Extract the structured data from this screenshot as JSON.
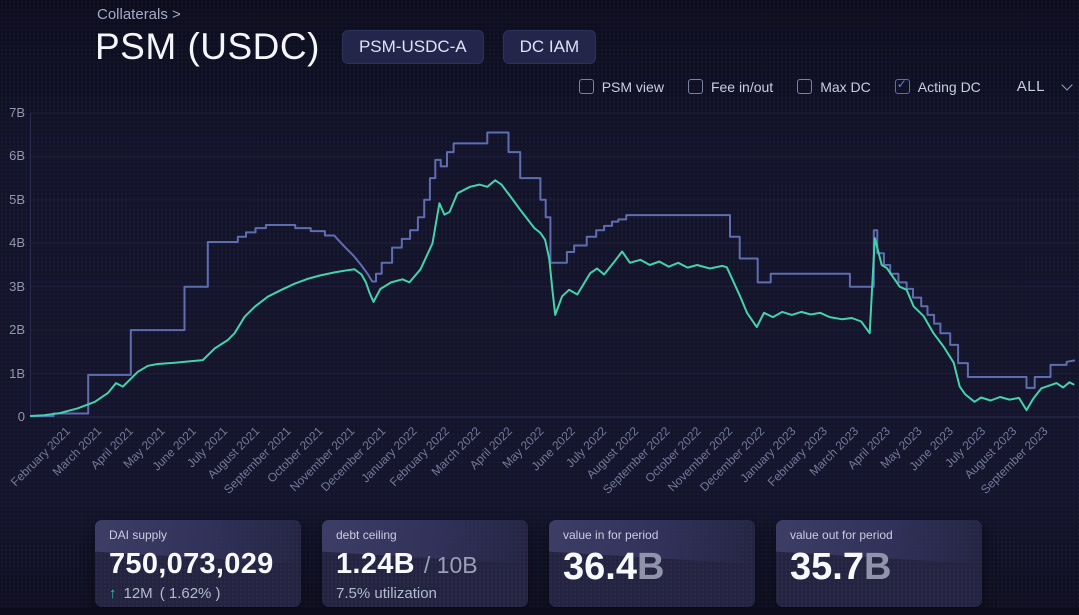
{
  "breadcrumb": "Collaterals >",
  "title": "PSM (USDC)",
  "badges": [
    "PSM-USDC-A",
    "DC IAM"
  ],
  "controls": {
    "checkboxes": [
      {
        "label": "PSM view",
        "checked": false
      },
      {
        "label": "Fee in/out",
        "checked": false
      },
      {
        "label": "Max DC",
        "checked": false
      },
      {
        "label": "Acting DC",
        "checked": true
      }
    ],
    "range": {
      "value": "ALL"
    }
  },
  "colors": {
    "acting_dc_line": "#5e6db0",
    "dai_supply_line": "#43d3ab",
    "checkbox_checked": "#4f6fd6",
    "positive_change": "#2fc9a2",
    "card_bg": "#242441",
    "page_bg": "#13132a"
  },
  "chart_data": {
    "type": "line",
    "title": "",
    "xlabel": "",
    "ylabel": "",
    "x_unit": "months, fractional, 0 = February 2021 tick",
    "y_unit": "billions of DAI",
    "ylim": [
      0,
      7
    ],
    "grid": true,
    "legend_position": "none (series toggled by checkboxes above chart)",
    "y_axis": {
      "tick_labels": [
        "0",
        "1B",
        "2B",
        "3B",
        "4B",
        "5B",
        "6B",
        "7B"
      ]
    },
    "x_axis": {
      "tick_labels": [
        "February 2021",
        "March 2021",
        "April 2021",
        "May 2021",
        "June 2021",
        "July 2021",
        "August 2021",
        "September 2021",
        "October 2021",
        "November 2021",
        "December 2021",
        "January 2022",
        "February 2022",
        "March 2022",
        "April 2022",
        "May 2022",
        "June 2022",
        "July 2022",
        "August 2022",
        "September 2022",
        "October 2022",
        "November 2022",
        "December 2022",
        "January 2023",
        "February 2023",
        "March 2023",
        "April 2023",
        "May 2023",
        "June 2023",
        "July 2023",
        "August 2023",
        "September 2023"
      ]
    },
    "series": [
      {
        "name": "Acting DC",
        "color": "#5e6db0",
        "style": "step",
        "points": [
          [
            -1.1,
            0.02
          ],
          [
            -0.3,
            0.02
          ],
          [
            -0.3,
            0.08
          ],
          [
            0.8,
            0.08
          ],
          [
            0.8,
            0.97
          ],
          [
            2.15,
            0.97
          ],
          [
            2.15,
            2.0
          ],
          [
            3.85,
            2.0
          ],
          [
            3.85,
            3.0
          ],
          [
            4.59,
            3.0
          ],
          [
            4.59,
            4.03
          ],
          [
            5.54,
            4.03
          ],
          [
            5.54,
            4.15
          ],
          [
            5.8,
            4.15
          ],
          [
            5.8,
            4.25
          ],
          [
            6.1,
            4.25
          ],
          [
            6.1,
            4.35
          ],
          [
            6.43,
            4.35
          ],
          [
            6.43,
            4.42
          ],
          [
            7.36,
            4.42
          ],
          [
            7.36,
            4.35
          ],
          [
            7.85,
            4.35
          ],
          [
            7.85,
            4.28
          ],
          [
            8.3,
            4.28
          ],
          [
            8.3,
            4.18
          ],
          [
            8.6,
            4.18
          ],
          [
            8.72,
            4.08
          ],
          [
            8.95,
            3.9
          ],
          [
            9.2,
            3.72
          ],
          [
            9.45,
            3.5
          ],
          [
            9.65,
            3.3
          ],
          [
            9.8,
            3.12
          ],
          [
            9.92,
            3.12
          ],
          [
            9.92,
            3.3
          ],
          [
            10.1,
            3.3
          ],
          [
            10.1,
            3.55
          ],
          [
            10.43,
            3.55
          ],
          [
            10.43,
            3.9
          ],
          [
            10.74,
            3.9
          ],
          [
            10.74,
            4.1
          ],
          [
            11.0,
            4.1
          ],
          [
            11.0,
            4.3
          ],
          [
            11.25,
            4.3
          ],
          [
            11.25,
            4.6
          ],
          [
            11.45,
            4.6
          ],
          [
            11.45,
            5.0
          ],
          [
            11.63,
            5.0
          ],
          [
            11.63,
            5.5
          ],
          [
            11.8,
            5.5
          ],
          [
            11.8,
            5.92
          ],
          [
            11.97,
            5.92
          ],
          [
            11.97,
            5.77
          ],
          [
            12.17,
            5.77
          ],
          [
            12.17,
            6.1
          ],
          [
            12.38,
            6.1
          ],
          [
            12.38,
            6.3
          ],
          [
            13.45,
            6.3
          ],
          [
            13.45,
            6.55
          ],
          [
            14.12,
            6.55
          ],
          [
            14.12,
            6.1
          ],
          [
            14.49,
            6.1
          ],
          [
            14.49,
            5.5
          ],
          [
            15.13,
            5.5
          ],
          [
            15.13,
            5.0
          ],
          [
            15.3,
            5.0
          ],
          [
            15.3,
            4.6
          ],
          [
            15.45,
            4.6
          ],
          [
            15.45,
            3.55
          ],
          [
            15.97,
            3.55
          ],
          [
            15.97,
            3.8
          ],
          [
            16.2,
            3.8
          ],
          [
            16.2,
            3.95
          ],
          [
            16.6,
            3.95
          ],
          [
            16.6,
            4.15
          ],
          [
            16.9,
            4.15
          ],
          [
            16.9,
            4.3
          ],
          [
            17.15,
            4.3
          ],
          [
            17.15,
            4.4
          ],
          [
            17.4,
            4.4
          ],
          [
            17.4,
            4.5
          ],
          [
            17.6,
            4.5
          ],
          [
            17.6,
            4.55
          ],
          [
            17.85,
            4.55
          ],
          [
            17.85,
            4.65
          ],
          [
            21.14,
            4.65
          ],
          [
            21.14,
            4.15
          ],
          [
            21.45,
            4.15
          ],
          [
            21.45,
            3.65
          ],
          [
            22.02,
            3.65
          ],
          [
            22.02,
            3.1
          ],
          [
            22.43,
            3.1
          ],
          [
            22.43,
            3.3
          ],
          [
            24.94,
            3.3
          ],
          [
            24.94,
            3.0
          ],
          [
            25.7,
            3.0
          ],
          [
            25.7,
            4.3
          ],
          [
            25.81,
            4.3
          ],
          [
            25.81,
            3.77
          ],
          [
            26.02,
            3.77
          ],
          [
            26.02,
            3.5
          ],
          [
            26.22,
            3.5
          ],
          [
            26.22,
            3.3
          ],
          [
            26.48,
            3.3
          ],
          [
            26.48,
            3.1
          ],
          [
            26.74,
            3.1
          ],
          [
            26.74,
            2.95
          ],
          [
            26.94,
            2.95
          ],
          [
            26.94,
            2.75
          ],
          [
            27.2,
            2.75
          ],
          [
            27.2,
            2.55
          ],
          [
            27.4,
            2.55
          ],
          [
            27.4,
            2.35
          ],
          [
            27.61,
            2.35
          ],
          [
            27.61,
            2.15
          ],
          [
            27.81,
            2.15
          ],
          [
            27.81,
            1.93
          ],
          [
            28.12,
            1.93
          ],
          [
            28.12,
            1.66
          ],
          [
            28.37,
            1.66
          ],
          [
            28.37,
            1.24
          ],
          [
            28.68,
            1.24
          ],
          [
            28.68,
            0.92
          ],
          [
            30.54,
            0.92
          ],
          [
            30.54,
            0.67
          ],
          [
            30.8,
            0.67
          ],
          [
            30.8,
            0.92
          ],
          [
            31.3,
            0.92
          ],
          [
            31.3,
            1.2
          ],
          [
            31.81,
            1.2
          ],
          [
            31.81,
            1.27
          ],
          [
            32.05,
            1.3
          ]
        ]
      },
      {
        "name": "DAI supply",
        "color": "#43d3ab",
        "style": "line",
        "points": [
          [
            -1.1,
            0.02
          ],
          [
            -0.6,
            0.04
          ],
          [
            -0.1,
            0.09
          ],
          [
            0.47,
            0.2
          ],
          [
            1.01,
            0.35
          ],
          [
            1.42,
            0.55
          ],
          [
            1.68,
            0.78
          ],
          [
            1.9,
            0.7
          ],
          [
            2.37,
            1.04
          ],
          [
            2.69,
            1.18
          ],
          [
            3.0,
            1.22
          ],
          [
            3.54,
            1.25
          ],
          [
            4.0,
            1.28
          ],
          [
            4.43,
            1.31
          ],
          [
            4.81,
            1.58
          ],
          [
            5.22,
            1.77
          ],
          [
            5.44,
            1.93
          ],
          [
            5.76,
            2.31
          ],
          [
            6.08,
            2.54
          ],
          [
            6.49,
            2.77
          ],
          [
            6.9,
            2.92
          ],
          [
            7.34,
            3.07
          ],
          [
            7.75,
            3.18
          ],
          [
            8.16,
            3.26
          ],
          [
            8.61,
            3.33
          ],
          [
            9.02,
            3.38
          ],
          [
            9.24,
            3.4
          ],
          [
            9.46,
            3.28
          ],
          [
            9.6,
            3.1
          ],
          [
            9.72,
            2.85
          ],
          [
            9.84,
            2.65
          ],
          [
            10.06,
            2.95
          ],
          [
            10.4,
            3.1
          ],
          [
            10.76,
            3.17
          ],
          [
            10.98,
            3.1
          ],
          [
            11.33,
            3.4
          ],
          [
            11.71,
            4.0
          ],
          [
            11.93,
            4.92
          ],
          [
            12.09,
            4.66
          ],
          [
            12.25,
            4.72
          ],
          [
            12.5,
            5.15
          ],
          [
            12.9,
            5.3
          ],
          [
            13.2,
            5.35
          ],
          [
            13.45,
            5.3
          ],
          [
            13.7,
            5.45
          ],
          [
            13.9,
            5.35
          ],
          [
            14.18,
            5.08
          ],
          [
            14.49,
            4.77
          ],
          [
            14.94,
            4.35
          ],
          [
            15.13,
            4.24
          ],
          [
            15.28,
            4.08
          ],
          [
            15.41,
            3.65
          ],
          [
            15.51,
            2.95
          ],
          [
            15.6,
            2.35
          ],
          [
            15.82,
            2.78
          ],
          [
            16.04,
            2.93
          ],
          [
            16.3,
            2.82
          ],
          [
            16.71,
            3.31
          ],
          [
            16.93,
            3.42
          ],
          [
            17.15,
            3.28
          ],
          [
            17.45,
            3.55
          ],
          [
            17.72,
            3.81
          ],
          [
            17.97,
            3.55
          ],
          [
            18.3,
            3.62
          ],
          [
            18.6,
            3.5
          ],
          [
            18.9,
            3.58
          ],
          [
            19.2,
            3.46
          ],
          [
            19.5,
            3.55
          ],
          [
            19.8,
            3.44
          ],
          [
            20.1,
            3.5
          ],
          [
            20.5,
            3.42
          ],
          [
            20.9,
            3.48
          ],
          [
            21.04,
            3.45
          ],
          [
            21.46,
            2.78
          ],
          [
            21.68,
            2.4
          ],
          [
            21.99,
            2.07
          ],
          [
            22.22,
            2.4
          ],
          [
            22.5,
            2.3
          ],
          [
            22.8,
            2.42
          ],
          [
            23.1,
            2.35
          ],
          [
            23.4,
            2.42
          ],
          [
            23.7,
            2.36
          ],
          [
            24.0,
            2.4
          ],
          [
            24.3,
            2.3
          ],
          [
            24.7,
            2.25
          ],
          [
            25.0,
            2.28
          ],
          [
            25.3,
            2.2
          ],
          [
            25.57,
            1.93
          ],
          [
            25.73,
            4.12
          ],
          [
            25.95,
            3.5
          ],
          [
            26.11,
            3.43
          ],
          [
            26.52,
            3.0
          ],
          [
            26.74,
            2.93
          ],
          [
            26.96,
            2.55
          ],
          [
            27.28,
            2.32
          ],
          [
            27.59,
            1.93
          ],
          [
            27.91,
            1.62
          ],
          [
            28.23,
            1.25
          ],
          [
            28.42,
            0.7
          ],
          [
            28.6,
            0.52
          ],
          [
            28.89,
            0.35
          ],
          [
            29.1,
            0.45
          ],
          [
            29.4,
            0.38
          ],
          [
            29.7,
            0.46
          ],
          [
            30.0,
            0.4
          ],
          [
            30.3,
            0.44
          ],
          [
            30.54,
            0.16
          ],
          [
            30.75,
            0.42
          ],
          [
            31.01,
            0.66
          ],
          [
            31.49,
            0.78
          ],
          [
            31.7,
            0.68
          ],
          [
            31.9,
            0.8
          ],
          [
            32.03,
            0.75
          ]
        ]
      }
    ]
  },
  "cards": [
    {
      "label": "DAI supply",
      "value": "750,073,029",
      "change_amount": "12M",
      "change_percent": "( 1.62% )"
    },
    {
      "label": "debt ceiling",
      "value": "1.24B",
      "limit": "/ 10B",
      "subtext": "7.5% utilization"
    },
    {
      "label": "value in for period",
      "value": "36.4",
      "unit": "B"
    },
    {
      "label": "value out for period",
      "value": "35.7",
      "unit": "B"
    }
  ]
}
